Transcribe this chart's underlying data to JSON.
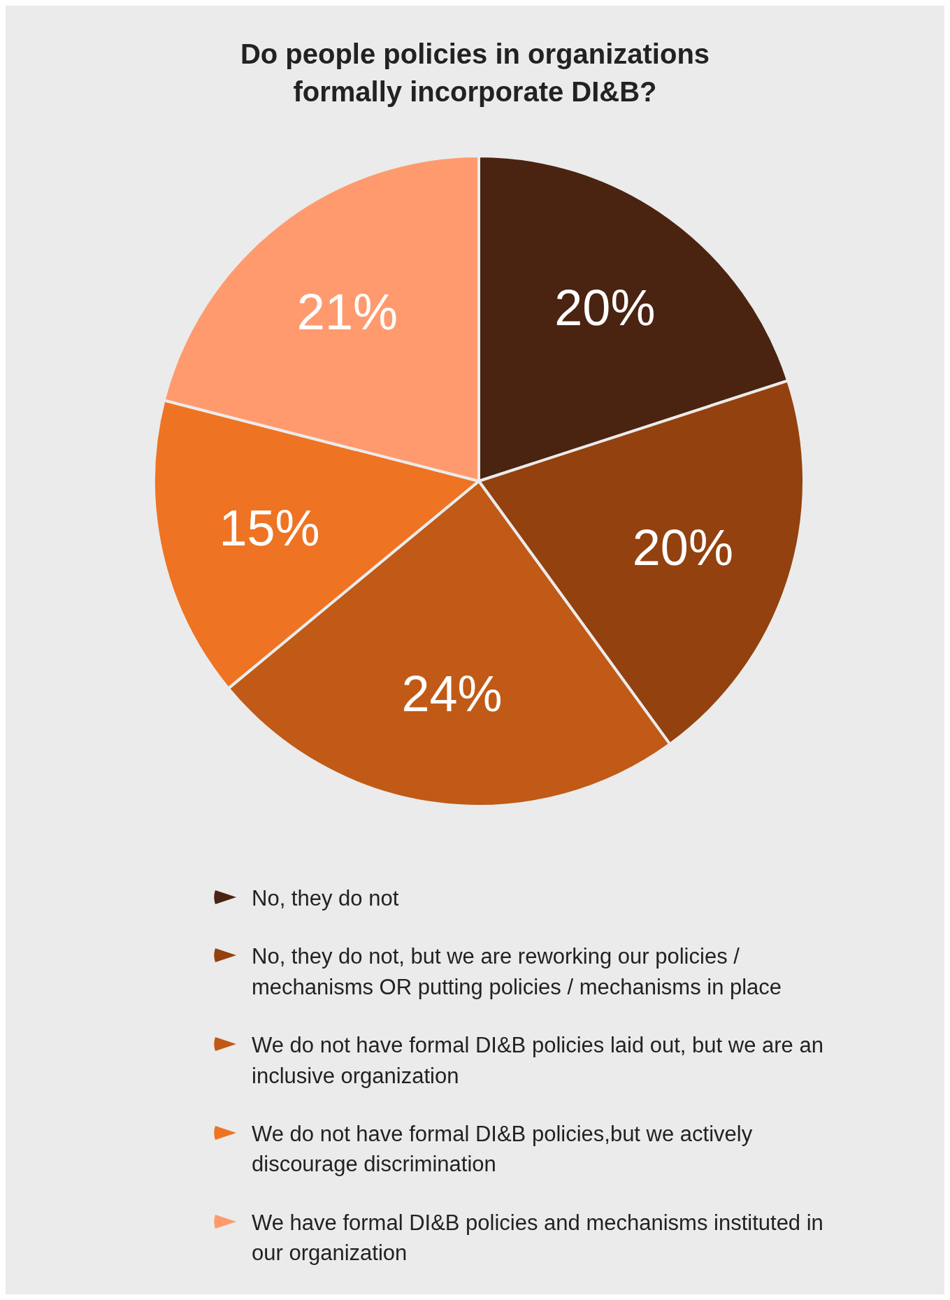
{
  "chart_data": {
    "type": "pie",
    "title": "Do people policies in organizations formally incorporate DI&B?",
    "categories": [
      "No, they do not",
      "No, they do not, but we are reworking our policies / mechanisms OR putting policies / mechanisms in place",
      "We do not have formal DI&B policies laid out, but we are an inclusive organization",
      "We do not have formal DI&B policies,but we actively discourage discrimination",
      "We have formal DI&B policies and mechanisms instituted in our organization"
    ],
    "values": [
      20,
      20,
      24,
      15,
      21
    ],
    "value_labels": [
      "20%",
      "20%",
      "24%",
      "15%",
      "21%"
    ],
    "colors": [
      "#4a2311",
      "#93410e",
      "#c05a16",
      "#ee7322",
      "#ff9a6e"
    ],
    "legend": "bottom"
  }
}
